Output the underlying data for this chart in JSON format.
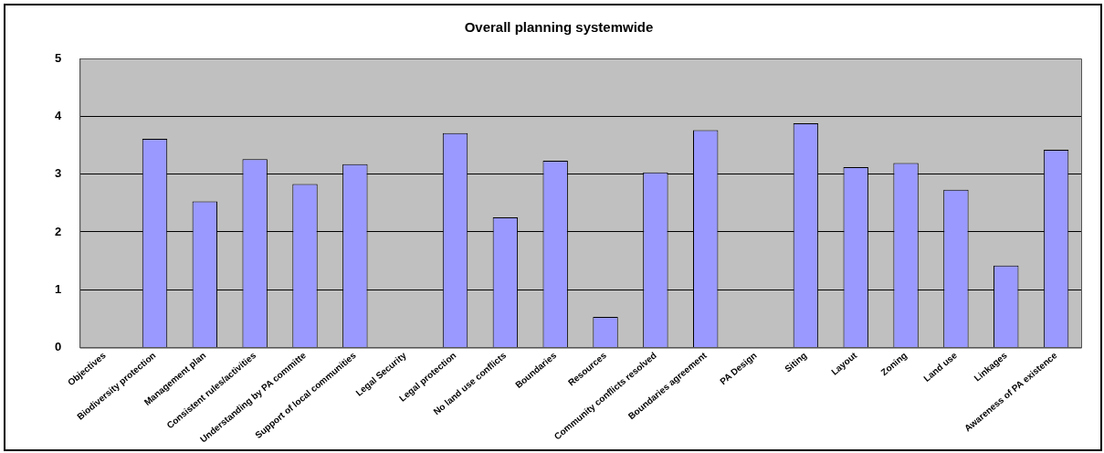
{
  "chart_data": {
    "type": "bar",
    "title": "Overall planning systemwide",
    "categories": [
      "Objectives",
      "Biodiversity protection",
      "Management plan",
      "Consistent rules/activities",
      "Understanding by PA committe",
      "Support of local communities",
      "Legal Security",
      "Legal protection",
      "No land use conflicts",
      "Boundaries",
      "Resources",
      "Community conflicts resolved",
      "Boundaries agreement",
      "PA Design",
      "Siting",
      "Layout",
      "Zoning",
      "Land use",
      "Linkages",
      "Awareness of PA existence"
    ],
    "values": [
      null,
      3.61,
      2.53,
      3.26,
      2.83,
      3.17,
      null,
      3.71,
      2.25,
      3.23,
      0.53,
      3.03,
      3.76,
      null,
      3.88,
      3.12,
      3.19,
      2.73,
      1.42,
      3.42
    ],
    "color": "#9999ff",
    "ylim": [
      0,
      5
    ],
    "yticks": [
      0,
      1,
      2,
      3,
      4,
      5
    ],
    "grid": "y",
    "legend": false
  }
}
